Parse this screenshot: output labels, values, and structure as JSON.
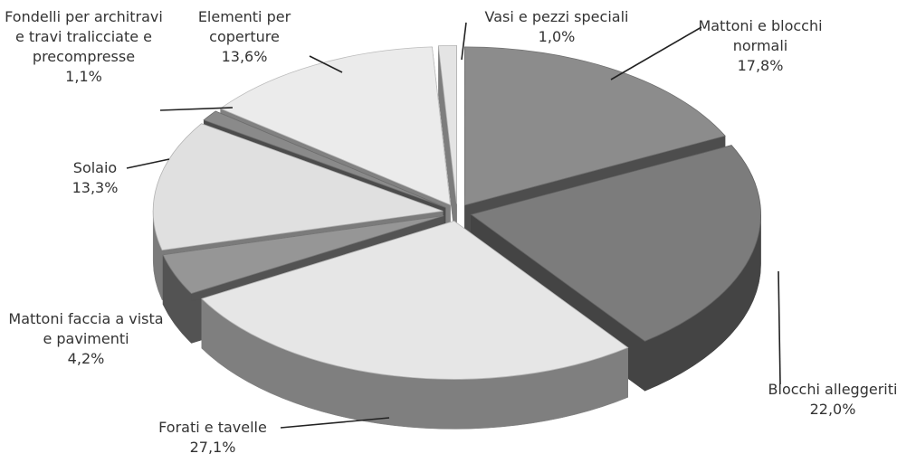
{
  "chart_data": {
    "type": "pie3d",
    "categories": [
      "Mattoni e blocchi normali",
      "Blocchi alleggeriti",
      "Forati e tavelle",
      "Mattoni faccia a vista e pavimenti",
      "Solaio",
      "Fondelli per architravi e travi tralicciate e precompresse",
      "Elementi per coperture",
      "Vasi e pezzi speciali"
    ],
    "values": [
      17.8,
      22.0,
      27.1,
      4.2,
      13.3,
      1.1,
      13.6,
      1.0
    ],
    "value_labels": [
      "17,8%",
      "22,0%",
      "27,1%",
      "4,2%",
      "13,3%",
      "1,1%",
      "13,6%",
      "1,0%"
    ],
    "colors": [
      "#8c8c8c",
      "#7c7c7c",
      "#e6e6e6",
      "#969696",
      "#e0e0e0",
      "#8a8a8a",
      "#ebebeb",
      "#e4e4e4"
    ]
  }
}
